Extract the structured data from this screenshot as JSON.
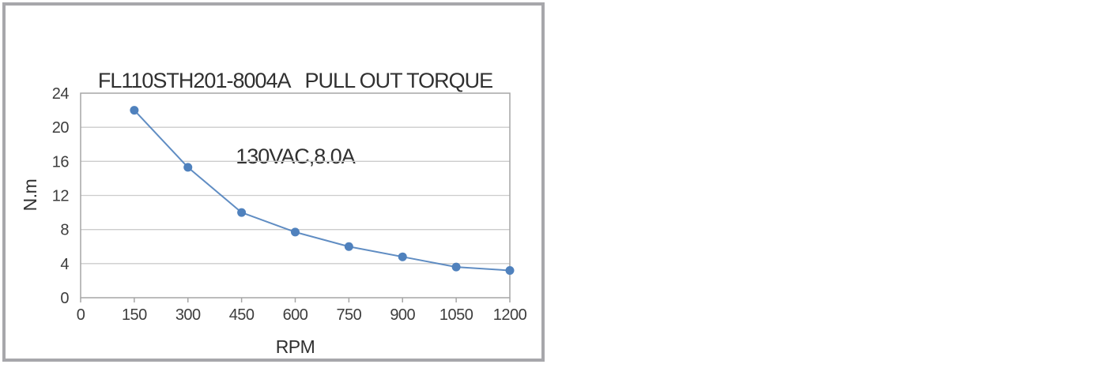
{
  "page": {
    "background_color": "#ffffff",
    "panel_border_color": "#a7a7ab"
  },
  "chart_data": {
    "type": "line",
    "title_line1": "FL110STH201-8004A   PULL OUT TORQUE",
    "title_line2": "130VAC,8.0A",
    "xlabel": "RPM",
    "ylabel": "N.m",
    "series": [
      {
        "name": "pull-out-torque",
        "x": [
          150,
          300,
          450,
          600,
          750,
          900,
          1050,
          1200
        ],
        "values": [
          22,
          15.3,
          10,
          7.7,
          6,
          4.8,
          3.6,
          3.2
        ]
      }
    ],
    "xlim": [
      0,
      1200
    ],
    "ylim": [
      0,
      24
    ],
    "x_ticks": [
      0,
      150,
      300,
      450,
      600,
      750,
      900,
      1050,
      1200
    ],
    "y_ticks": [
      0,
      4,
      8,
      12,
      16,
      20,
      24
    ],
    "grid": "horizontal-major",
    "legend": "none",
    "marker": "circle",
    "colors": {
      "series": "#4F81BD",
      "grid": "#cccccc",
      "axis": "#a6a6a6",
      "text": "#3d3d3d"
    }
  }
}
